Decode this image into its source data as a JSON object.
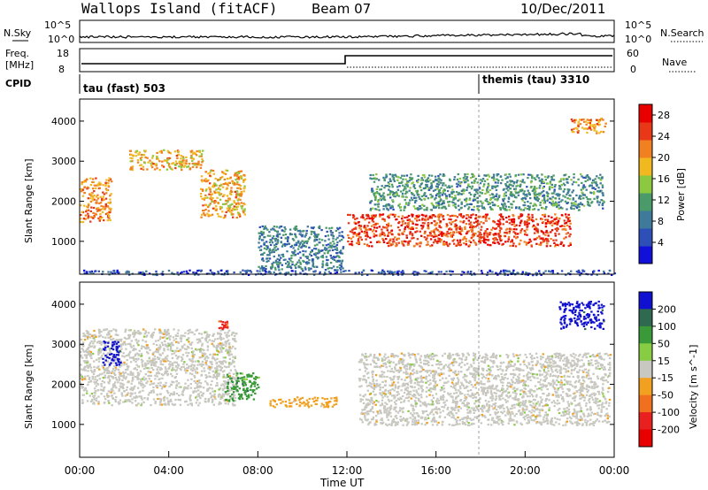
{
  "header": {
    "station": "Wallops Island (fitACF)",
    "beam": "Beam 07",
    "date": "10/Dec/2011"
  },
  "strips": {
    "nsky_label": "N.Sky",
    "nsearch_label": "N.Search",
    "freq_label_1": "Freq.",
    "freq_label_2": "[MHz]",
    "nave_label": "Nave",
    "cpid_label": "CPID",
    "noise_ticks": [
      "10^5",
      "10^0"
    ],
    "freq_ticks": [
      "18",
      "8"
    ],
    "nave_ticks": [
      "60",
      "0"
    ],
    "cpid_segments": [
      {
        "label": "tau (fast) 503",
        "start_hour": 0,
        "end_hour": 18.0
      },
      {
        "label": "themis (tau) 3310",
        "start_hour": 18.0,
        "end_hour": 24
      }
    ]
  },
  "chart_data": [
    {
      "type": "heatmap",
      "name": "power",
      "title": "Wallops Island (fitACF) Beam 07 10/Dec/2011",
      "xlabel": "",
      "ylabel": "Slant Range [km]",
      "xlim": [
        0,
        24
      ],
      "ylim": [
        180,
        4550
      ],
      "y_ticks": [
        "1000",
        "2000",
        "3000",
        "4000"
      ],
      "colorbar": {
        "label": "Power [dB]",
        "ticks": [
          "4",
          "8",
          "12",
          "16",
          "20",
          "24",
          "28"
        ],
        "range": [
          0,
          30
        ],
        "colors": [
          "#1010d8",
          "#2f4fb8",
          "#3f7a9a",
          "#4a9a6a",
          "#8cc840",
          "#f2b820",
          "#f08020",
          "#e83818",
          "#e80000"
        ]
      },
      "echo_regions": [
        {
          "t0": 0.0,
          "t1": 1.4,
          "r0": 1500,
          "r1": 2600,
          "level": 22
        },
        {
          "t0": 2.2,
          "t1": 5.5,
          "r0": 2800,
          "r1": 3300,
          "level": 20
        },
        {
          "t0": 5.4,
          "t1": 7.4,
          "r0": 1600,
          "r1": 2800,
          "level": 20
        },
        {
          "t0": 12.0,
          "t1": 22.0,
          "r0": 900,
          "r1": 1700,
          "level": 26
        },
        {
          "t0": 13.0,
          "t1": 23.5,
          "r0": 1800,
          "r1": 2700,
          "level": 10
        },
        {
          "t0": 22.0,
          "t1": 23.6,
          "r0": 3700,
          "r1": 4100,
          "level": 22
        },
        {
          "t0": 8.0,
          "t1": 11.8,
          "r0": 300,
          "r1": 1400,
          "level": 8
        },
        {
          "t0": 0.0,
          "t1": 24.0,
          "r0": 180,
          "r1": 300,
          "level": 4
        }
      ]
    },
    {
      "type": "heatmap",
      "name": "velocity",
      "title": "",
      "xlabel": "Time UT",
      "ylabel": "Slant Range [km]",
      "xlim": [
        0,
        24
      ],
      "ylim": [
        180,
        4550
      ],
      "x_ticks": [
        "00:00",
        "04:00",
        "08:00",
        "12:00",
        "16:00",
        "20:00",
        "00:00"
      ],
      "y_ticks": [
        "1000",
        "2000",
        "3000",
        "4000"
      ],
      "colorbar": {
        "label": "Velocity [m s^-1]",
        "ticks": [
          "200",
          "100",
          "50",
          "15",
          "-15",
          "-50",
          "-100",
          "-200"
        ],
        "colors": [
          "#1010d0",
          "#2f6a50",
          "#3a9a3a",
          "#88cc44",
          "#c8c8c0",
          "#f2a020",
          "#f07020",
          "#e82020",
          "#e80000"
        ]
      },
      "echo_regions": [
        {
          "t0": 0.0,
          "t1": 7.0,
          "r0": 1500,
          "r1": 3400,
          "velocity": 0
        },
        {
          "t0": 1.0,
          "t1": 1.8,
          "r0": 2500,
          "r1": 3100,
          "velocity": 200
        },
        {
          "t0": 6.2,
          "t1": 6.6,
          "r0": 3400,
          "r1": 3600,
          "velocity": -200
        },
        {
          "t0": 6.5,
          "t1": 8.0,
          "r0": 1600,
          "r1": 2300,
          "velocity": 50
        },
        {
          "t0": 8.5,
          "t1": 11.5,
          "r0": 1450,
          "r1": 1700,
          "velocity": -50
        },
        {
          "t0": 12.5,
          "t1": 23.8,
          "r0": 1000,
          "r1": 2800,
          "velocity": 0
        },
        {
          "t0": 21.5,
          "t1": 23.5,
          "r0": 3400,
          "r1": 4100,
          "velocity": 200
        }
      ]
    }
  ]
}
